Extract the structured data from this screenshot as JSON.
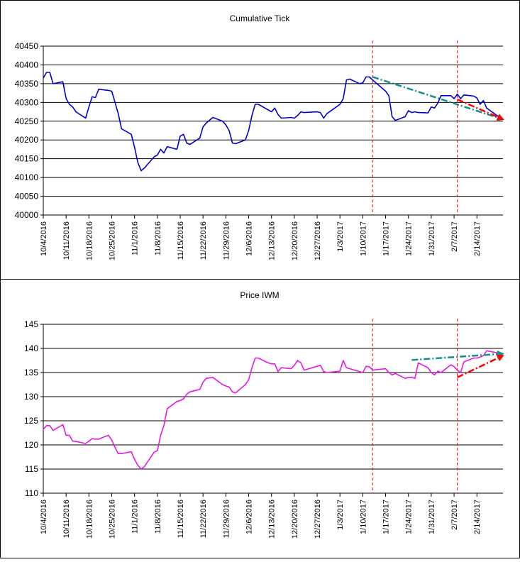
{
  "colors": {
    "tick_line": "#0000cc",
    "price_line": "#e619e6",
    "grid": "#000000",
    "marker_vertical": "#ff0000",
    "trend_teal": "#138f8f",
    "trend_red": "#ff0000"
  },
  "chart_data": [
    {
      "type": "line",
      "title": "Cumulative Tick",
      "xlabel": "",
      "ylabel": "",
      "ylim": [
        40000,
        40450
      ],
      "yticks": [
        "40450",
        "40400",
        "40350",
        "40300",
        "40250",
        "40200",
        "40150",
        "40100",
        "40050",
        "40000"
      ],
      "xticks": [
        "10/4/2016",
        "10/11/2016",
        "10/18/2016",
        "10/25/2016",
        "11/1/2016",
        "11/8/2016",
        "11/15/2016",
        "11/22/2016",
        "11/29/2016",
        "12/6/2016",
        "12/13/2016",
        "12/20/2016",
        "12/27/2016",
        "1/3/2017",
        "1/10/2017",
        "1/17/2017",
        "1/24/2017",
        "1/31/2017",
        "2/7/2017",
        "2/14/2017"
      ],
      "grid": true,
      "legend": "none",
      "vertical_markers": [
        "2017-01-13",
        "2017-02-08"
      ],
      "series": [
        {
          "points": [
            [
              "2016-10-04",
              40365
            ],
            [
              "2016-10-05",
              40380
            ],
            [
              "2016-10-06",
              40380
            ],
            [
              "2016-10-07",
              40350
            ],
            [
              "2016-10-10",
              40355
            ],
            [
              "2016-10-11",
              40310
            ],
            [
              "2016-10-12",
              40295
            ],
            [
              "2016-10-13",
              40288
            ],
            [
              "2016-10-14",
              40275
            ],
            [
              "2016-10-17",
              40258
            ],
            [
              "2016-10-18",
              40288
            ],
            [
              "2016-10-19",
              40315
            ],
            [
              "2016-10-20",
              40313
            ],
            [
              "2016-10-21",
              40335
            ],
            [
              "2016-10-24",
              40332
            ],
            [
              "2016-10-25",
              40330
            ],
            [
              "2016-10-26",
              40300
            ],
            [
              "2016-10-27",
              40270
            ],
            [
              "2016-10-28",
              40230
            ],
            [
              "2016-10-31",
              40215
            ],
            [
              "2016-11-01",
              40180
            ],
            [
              "2016-11-02",
              40140
            ],
            [
              "2016-11-03",
              40118
            ],
            [
              "2016-11-04",
              40125
            ],
            [
              "2016-11-07",
              40155
            ],
            [
              "2016-11-08",
              40160
            ],
            [
              "2016-11-09",
              40175
            ],
            [
              "2016-11-10",
              40165
            ],
            [
              "2016-11-11",
              40182
            ],
            [
              "2016-11-14",
              40175
            ],
            [
              "2016-11-15",
              40210
            ],
            [
              "2016-11-16",
              40215
            ],
            [
              "2016-11-17",
              40192
            ],
            [
              "2016-11-18",
              40188
            ],
            [
              "2016-11-21",
              40205
            ],
            [
              "2016-11-22",
              40235
            ],
            [
              "2016-11-23",
              40245
            ],
            [
              "2016-11-25",
              40260
            ],
            [
              "2016-11-28",
              40250
            ],
            [
              "2016-11-29",
              40240
            ],
            [
              "2016-11-30",
              40225
            ],
            [
              "2016-12-01",
              40192
            ],
            [
              "2016-12-02",
              40190
            ],
            [
              "2016-12-05",
              40200
            ],
            [
              "2016-12-06",
              40225
            ],
            [
              "2016-12-07",
              40265
            ],
            [
              "2016-12-08",
              40295
            ],
            [
              "2016-12-09",
              40295
            ],
            [
              "2016-12-12",
              40280
            ],
            [
              "2016-12-13",
              40275
            ],
            [
              "2016-12-14",
              40285
            ],
            [
              "2016-12-15",
              40268
            ],
            [
              "2016-12-16",
              40258
            ],
            [
              "2016-12-19",
              40260
            ],
            [
              "2016-12-20",
              40258
            ],
            [
              "2016-12-21",
              40265
            ],
            [
              "2016-12-22",
              40275
            ],
            [
              "2016-12-23",
              40273
            ],
            [
              "2016-12-27",
              40275
            ],
            [
              "2016-12-28",
              40273
            ],
            [
              "2016-12-29",
              40258
            ],
            [
              "2016-12-30",
              40270
            ],
            [
              "2017-01-03",
              40295
            ],
            [
              "2017-01-04",
              40310
            ],
            [
              "2017-01-05",
              40360
            ],
            [
              "2017-01-06",
              40362
            ],
            [
              "2017-01-09",
              40350
            ],
            [
              "2017-01-10",
              40352
            ],
            [
              "2017-01-11",
              40368
            ],
            [
              "2017-01-12",
              40368
            ],
            [
              "2017-01-13",
              40360
            ],
            [
              "2017-01-17",
              40330
            ],
            [
              "2017-01-18",
              40318
            ],
            [
              "2017-01-19",
              40262
            ],
            [
              "2017-01-20",
              40252
            ],
            [
              "2017-01-23",
              40262
            ],
            [
              "2017-01-24",
              40278
            ],
            [
              "2017-01-25",
              40273
            ],
            [
              "2017-01-26",
              40275
            ],
            [
              "2017-01-27",
              40273
            ],
            [
              "2017-01-30",
              40272
            ],
            [
              "2017-01-31",
              40288
            ],
            [
              "2017-02-01",
              40285
            ],
            [
              "2017-02-02",
              40298
            ],
            [
              "2017-02-03",
              40318
            ],
            [
              "2017-02-06",
              40318
            ],
            [
              "2017-02-07",
              40310
            ],
            [
              "2017-02-08",
              40322
            ],
            [
              "2017-02-09",
              40310
            ],
            [
              "2017-02-10",
              40320
            ],
            [
              "2017-02-13",
              40317
            ],
            [
              "2017-02-14",
              40312
            ],
            [
              "2017-02-15",
              40295
            ],
            [
              "2017-02-16",
              40305
            ],
            [
              "2017-02-17",
              40285
            ],
            [
              "2017-02-21",
              40260
            ]
          ]
        }
      ],
      "trendlines": [
        {
          "color": "teal",
          "from": [
            "2017-01-13",
            40368
          ],
          "to": [
            "2017-02-22",
            40255
          ]
        },
        {
          "color": "red",
          "from": [
            "2017-02-08",
            40308
          ],
          "to": [
            "2017-02-22",
            40255
          ]
        }
      ]
    },
    {
      "type": "line",
      "title": "Price IWM",
      "xlabel": "",
      "ylabel": "",
      "ylim": [
        110,
        145
      ],
      "yticks": [
        "145",
        "140",
        "135",
        "130",
        "125",
        "120",
        "115",
        "110"
      ],
      "xticks": [
        "10/4/2016",
        "10/11/2016",
        "10/18/2016",
        "10/25/2016",
        "11/1/2016",
        "11/8/2016",
        "11/15/2016",
        "11/22/2016",
        "11/29/2016",
        "12/6/2016",
        "12/13/2016",
        "12/20/2016",
        "12/27/2016",
        "1/3/2017",
        "1/10/2017",
        "1/17/2017",
        "1/24/2017",
        "1/31/2017",
        "2/7/2017",
        "2/14/2017"
      ],
      "grid": true,
      "legend": "none",
      "vertical_markers": [
        "2017-01-13",
        "2017-02-08"
      ],
      "series": [
        {
          "points": [
            [
              "2016-10-04",
              123.2
            ],
            [
              "2016-10-05",
              124.0
            ],
            [
              "2016-10-06",
              124.0
            ],
            [
              "2016-10-07",
              123.0
            ],
            [
              "2016-10-10",
              124.2
            ],
            [
              "2016-10-11",
              122.0
            ],
            [
              "2016-10-12",
              122.0
            ],
            [
              "2016-10-13",
              120.8
            ],
            [
              "2016-10-14",
              120.7
            ],
            [
              "2016-10-17",
              120.3
            ],
            [
              "2016-10-18",
              120.8
            ],
            [
              "2016-10-19",
              121.3
            ],
            [
              "2016-10-20",
              121.2
            ],
            [
              "2016-10-21",
              121.2
            ],
            [
              "2016-10-24",
              122.0
            ],
            [
              "2016-10-25",
              121.0
            ],
            [
              "2016-10-26",
              119.5
            ],
            [
              "2016-10-27",
              118.2
            ],
            [
              "2016-10-28",
              118.2
            ],
            [
              "2016-10-31",
              118.6
            ],
            [
              "2016-11-01",
              117.0
            ],
            [
              "2016-11-02",
              115.8
            ],
            [
              "2016-11-03",
              115.0
            ],
            [
              "2016-11-04",
              115.5
            ],
            [
              "2016-11-07",
              118.5
            ],
            [
              "2016-11-08",
              118.8
            ],
            [
              "2016-11-09",
              122.0
            ],
            [
              "2016-11-10",
              124.0
            ],
            [
              "2016-11-11",
              127.5
            ],
            [
              "2016-11-14",
              129.0
            ],
            [
              "2016-11-15",
              129.2
            ],
            [
              "2016-11-16",
              129.5
            ],
            [
              "2016-11-17",
              130.5
            ],
            [
              "2016-11-18",
              131.0
            ],
            [
              "2016-11-21",
              131.5
            ],
            [
              "2016-11-22",
              133.0
            ],
            [
              "2016-11-23",
              133.8
            ],
            [
              "2016-11-25",
              134.0
            ],
            [
              "2016-11-28",
              132.5
            ],
            [
              "2016-11-29",
              132.2
            ],
            [
              "2016-11-30",
              132.0
            ],
            [
              "2016-12-01",
              131.0
            ],
            [
              "2016-12-02",
              130.8
            ],
            [
              "2016-12-05",
              132.5
            ],
            [
              "2016-12-06",
              133.5
            ],
            [
              "2016-12-07",
              136.0
            ],
            [
              "2016-12-08",
              138.0
            ],
            [
              "2016-12-09",
              138.0
            ],
            [
              "2016-12-12",
              137.0
            ],
            [
              "2016-12-13",
              136.8
            ],
            [
              "2016-12-14",
              136.8
            ],
            [
              "2016-12-15",
              135.2
            ],
            [
              "2016-12-16",
              136.0
            ],
            [
              "2016-12-19",
              135.8
            ],
            [
              "2016-12-20",
              136.5
            ],
            [
              "2016-12-21",
              137.5
            ],
            [
              "2016-12-22",
              137.0
            ],
            [
              "2016-12-23",
              135.5
            ],
            [
              "2016-12-27",
              136.3
            ],
            [
              "2016-12-28",
              136.5
            ],
            [
              "2016-12-29",
              135.2
            ],
            [
              "2016-12-30",
              135.0
            ],
            [
              "2017-01-03",
              135.3
            ],
            [
              "2017-01-04",
              137.5
            ],
            [
              "2017-01-05",
              136.0
            ],
            [
              "2017-01-06",
              135.8
            ],
            [
              "2017-01-09",
              135.2
            ],
            [
              "2017-01-10",
              135.0
            ],
            [
              "2017-01-11",
              136.3
            ],
            [
              "2017-01-12",
              136.2
            ],
            [
              "2017-01-13",
              135.5
            ],
            [
              "2017-01-17",
              135.8
            ],
            [
              "2017-01-18",
              135.0
            ],
            [
              "2017-01-19",
              134.5
            ],
            [
              "2017-01-20",
              134.8
            ],
            [
              "2017-01-23",
              133.8
            ],
            [
              "2017-01-24",
              134.0
            ],
            [
              "2017-01-25",
              134.0
            ],
            [
              "2017-01-26",
              133.8
            ],
            [
              "2017-01-27",
              137.0
            ],
            [
              "2017-01-30",
              136.0
            ],
            [
              "2017-01-31",
              135.0
            ],
            [
              "2017-02-01",
              134.5
            ],
            [
              "2017-02-02",
              135.3
            ],
            [
              "2017-02-03",
              135.0
            ],
            [
              "2017-02-06",
              136.6
            ],
            [
              "2017-02-07",
              136.2
            ],
            [
              "2017-02-08",
              135.5
            ],
            [
              "2017-02-09",
              135.0
            ],
            [
              "2017-02-10",
              137.2
            ],
            [
              "2017-02-13",
              138.0
            ],
            [
              "2017-02-14",
              138.0
            ],
            [
              "2017-02-15",
              138.2
            ],
            [
              "2017-02-16",
              138.5
            ],
            [
              "2017-02-17",
              139.5
            ],
            [
              "2017-02-21",
              139.0
            ]
          ]
        }
      ],
      "trendlines": [
        {
          "color": "teal",
          "from": [
            "2017-01-25",
            137.6
          ],
          "to": [
            "2017-02-22",
            138.9
          ]
        },
        {
          "color": "red",
          "from": [
            "2017-02-08",
            134.0
          ],
          "to": [
            "2017-02-22",
            138.5
          ]
        }
      ]
    }
  ]
}
